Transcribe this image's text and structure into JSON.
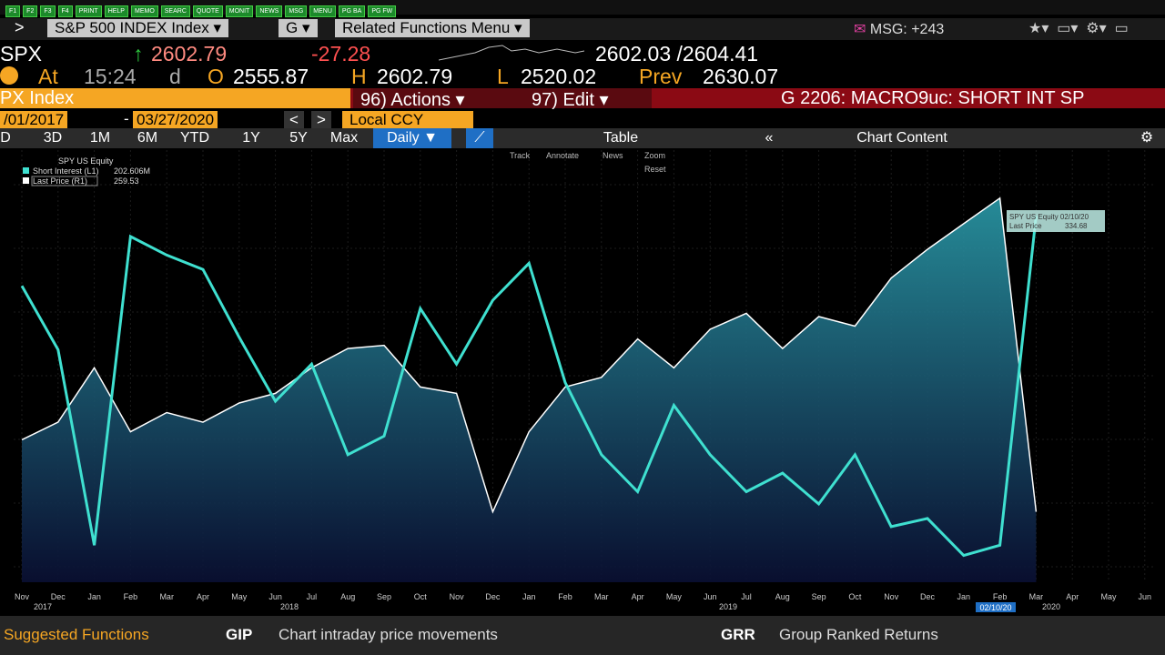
{
  "fkeys": [
    "F1",
    "F2",
    "F3",
    "F4",
    "PRINT",
    "HELP",
    "MEMO",
    "SEARC",
    "QUOTE",
    "MONIT",
    "NEWS",
    "MSG",
    "MENU",
    "PG BA",
    "PG FW"
  ],
  "toolbar": {
    "arrow": ">",
    "security": "S&P 500 INDEX Index",
    "function": "G",
    "related": "Related Functions Menu",
    "msg": "MSG: +243"
  },
  "quote": {
    "ticker": "SPX",
    "last": "2602.79",
    "change": "-27.28",
    "bid_ask": "2602.03 /2604.41",
    "at": "At",
    "time": "15:24",
    "d": "d",
    "open_label": "O",
    "open": "2555.87",
    "high_label": "H",
    "high": "2602.79",
    "low_label": "L",
    "low": "2520.02",
    "prev_label": "Prev",
    "prev": "2630.07"
  },
  "menu": {
    "index": "PX Index",
    "actions": "96) Actions",
    "edit": "97) Edit",
    "graph": "G 2206: MACRO9uc: SHORT INT SP"
  },
  "range": {
    "start": "/01/2017",
    "dash": "-",
    "end": "03/27/2020",
    "currency": "Local CCY"
  },
  "periods": [
    "D",
    "3D",
    "1M",
    "6M",
    "YTD",
    "1Y",
    "5Y",
    "Max"
  ],
  "frequency": "Daily",
  "table": "Table",
  "chart_content": "Chart Content",
  "chart_tools": [
    "Track",
    "Annotate",
    "News",
    "Zoom",
    "Reset"
  ],
  "legend": {
    "title": "SPY US Equity",
    "short_interest": "Short Interest (L1)",
    "short_interest_last": "202.606M",
    "last_price": "Last Price (R1)",
    "last_price_last": "259.53"
  },
  "tooltip": {
    "title": "SPY US Equity 02/10/20",
    "label": "Last Price",
    "value": "334.68"
  },
  "years": [
    "2017",
    "2018",
    "2019",
    "2020"
  ],
  "cursor_date": "02/10/20",
  "chart_data": {
    "type": "line",
    "categories": [
      "Nov",
      "Dec",
      "Jan",
      "Feb",
      "Mar",
      "Apr",
      "May",
      "Jun",
      "Jul",
      "Aug",
      "Sep",
      "Oct",
      "Nov",
      "Dec",
      "Jan",
      "Feb",
      "Mar",
      "Apr",
      "May",
      "Jun",
      "Jul",
      "Aug",
      "Sep",
      "Oct",
      "Nov",
      "Dec",
      "Jan",
      "Feb",
      "Mar",
      "Apr",
      "May",
      "Jun"
    ],
    "ylim": [
      25,
      235
    ],
    "y2lim": [
      215,
      350
    ],
    "series": [
      {
        "name": "Short Interest (L1)",
        "color": "#3fe0d0",
        "values": [
          169,
          138,
          43,
          193,
          184,
          177,
          144,
          113,
          131,
          87,
          96,
          158,
          131,
          162,
          180,
          122,
          87,
          69,
          111,
          87,
          69,
          78,
          63,
          87,
          52,
          56,
          38,
          43,
          203,
          null,
          null,
          null
        ]
      },
      {
        "name": "Last Price (R1)",
        "color": "#ffffff",
        "axis": "y2",
        "values": [
          259.5,
          265,
          282,
          262,
          268,
          265,
          271,
          274,
          282,
          288,
          289,
          276,
          274,
          237,
          262,
          276,
          279,
          291,
          282,
          294,
          299,
          288,
          298,
          295,
          310,
          319,
          327,
          335,
          237,
          null,
          null,
          null
        ]
      }
    ]
  },
  "footer": {
    "suggested": "Suggested Functions",
    "f1_code": "GIP",
    "f1_desc": "Chart intraday price movements",
    "f2_code": "GRR",
    "f2_desc": "Group Ranked Returns"
  }
}
